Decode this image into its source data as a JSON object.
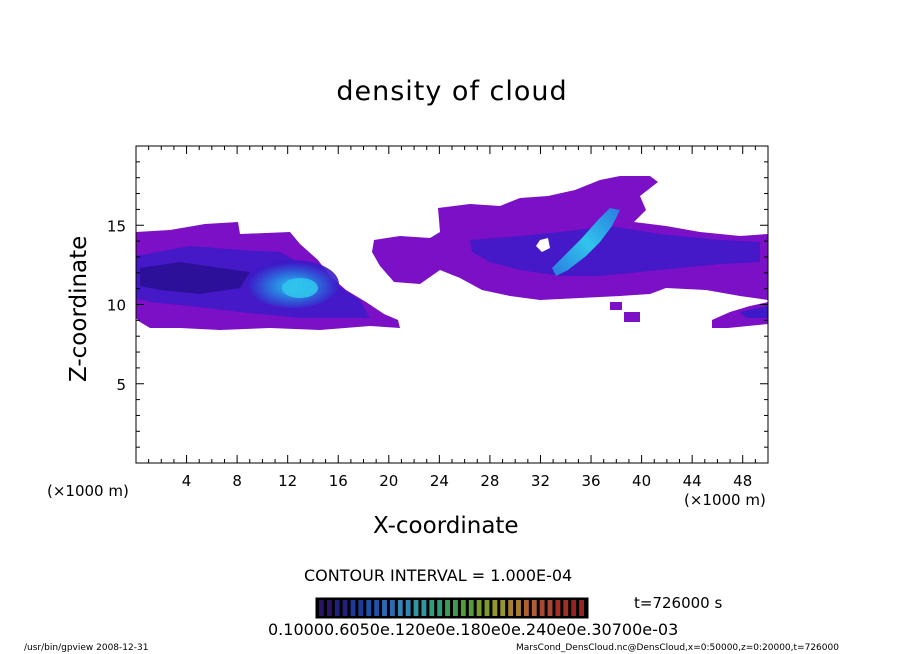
{
  "chart_data": {
    "type": "heatmap",
    "title": "density of cloud",
    "xlabel": "X-coordinate",
    "ylabel": "Z-coordinate",
    "x_unit": "(×1000 m)",
    "z_unit": "(×1000 m)",
    "xlim": [
      0,
      50
    ],
    "ylim": [
      0,
      20
    ],
    "x_ticks": [
      "4",
      "8",
      "12",
      "16",
      "20",
      "24",
      "28",
      "32",
      "36",
      "40",
      "44",
      "48"
    ],
    "y_ticks": [
      "5",
      "10",
      "15"
    ],
    "contour_interval_text": "CONTOUR INTERVAL = 1.000E-04",
    "time_text": "t=726000 s",
    "colorbar_labels_text": "0.10000.6050e.120e0e.180e0e.240e0e.30700e-03",
    "regions": [
      {
        "name": "left-cloud",
        "x": [
          0,
          21
        ],
        "z": [
          8.7,
          14.7
        ],
        "level": "low"
      },
      {
        "name": "left-core",
        "x": [
          9.5,
          16
        ],
        "z": [
          10.2,
          12.8
        ],
        "level": "high"
      },
      {
        "name": "central-cloud",
        "x": [
          18.5,
          50
        ],
        "z": [
          9.5,
          18
        ],
        "level": "low"
      },
      {
        "name": "central-streak",
        "x": [
          32.5,
          37
        ],
        "z": [
          12.5,
          16.5
        ],
        "level": "high"
      },
      {
        "name": "right-lower-cloud",
        "x": [
          45,
          50
        ],
        "z": [
          8.7,
          10.2
        ],
        "level": "low"
      }
    ]
  },
  "footer": {
    "left": "/usr/bin/gpview   2008-12-31",
    "right": "MarsCond_DensCloud.nc@DensCloud,x=0:50000,z=0:20000,t=726000"
  },
  "colors": {
    "base": "#7b10c6",
    "mid": "#3c1ac8",
    "dark": "#2a1095",
    "high": "#2a7be0",
    "peak": "#30c4ec"
  }
}
